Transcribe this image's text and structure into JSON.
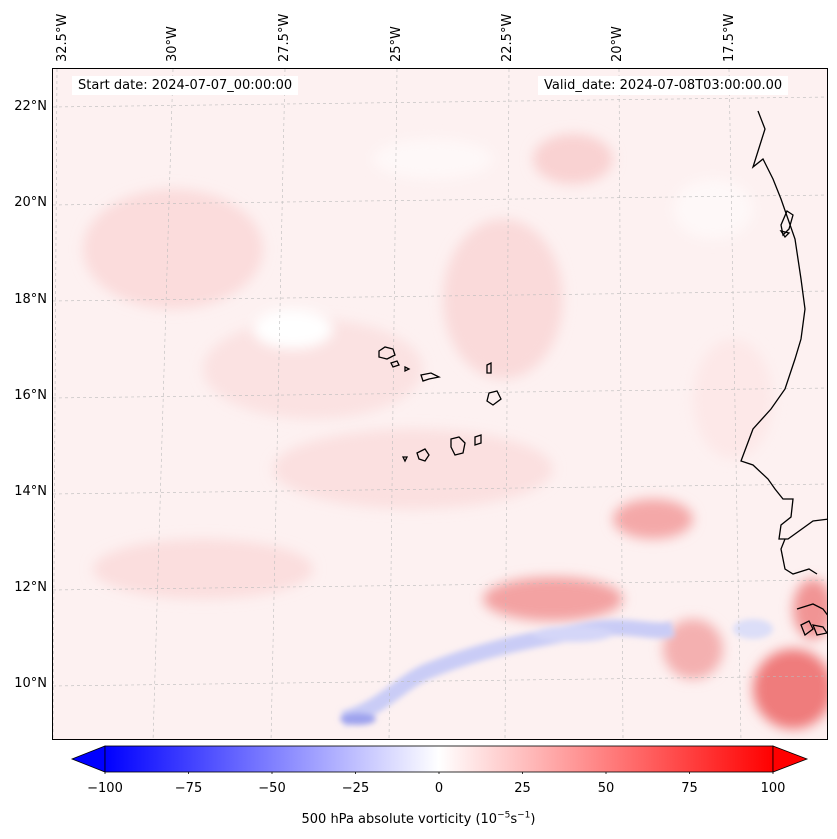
{
  "header": {
    "start_date": "Start date: 2024-07-07_00:00:00",
    "valid_date": "Valid_date: 2024-07-08T03:00:00.00"
  },
  "lon_labels": [
    "32.5°W",
    "30°W",
    "27.5°W",
    "25°W",
    "22.5°W",
    "20°W",
    "17.5°W"
  ],
  "lat_labels": [
    "22°N",
    "20°N",
    "18°N",
    "16°N",
    "14°N",
    "12°N",
    "10°N"
  ],
  "colorbar": {
    "ticks": [
      "−100",
      "−75",
      "−50",
      "−25",
      "0",
      "25",
      "50",
      "75",
      "100"
    ],
    "label": "500 hPa absolute vorticity (10",
    "label_exp1": "−5",
    "label_mid": "s",
    "label_exp2": "−1",
    "label_end": ")",
    "vmin": -100,
    "vmax": 100,
    "cmap": "bwr",
    "low_color": "#0000ff",
    "mid_color": "#ffffff",
    "high_color": "#ff0000"
  },
  "map": {
    "region": "Cabo Verde / West African coast",
    "gridlines": true,
    "coastline_color": "#000000"
  }
}
